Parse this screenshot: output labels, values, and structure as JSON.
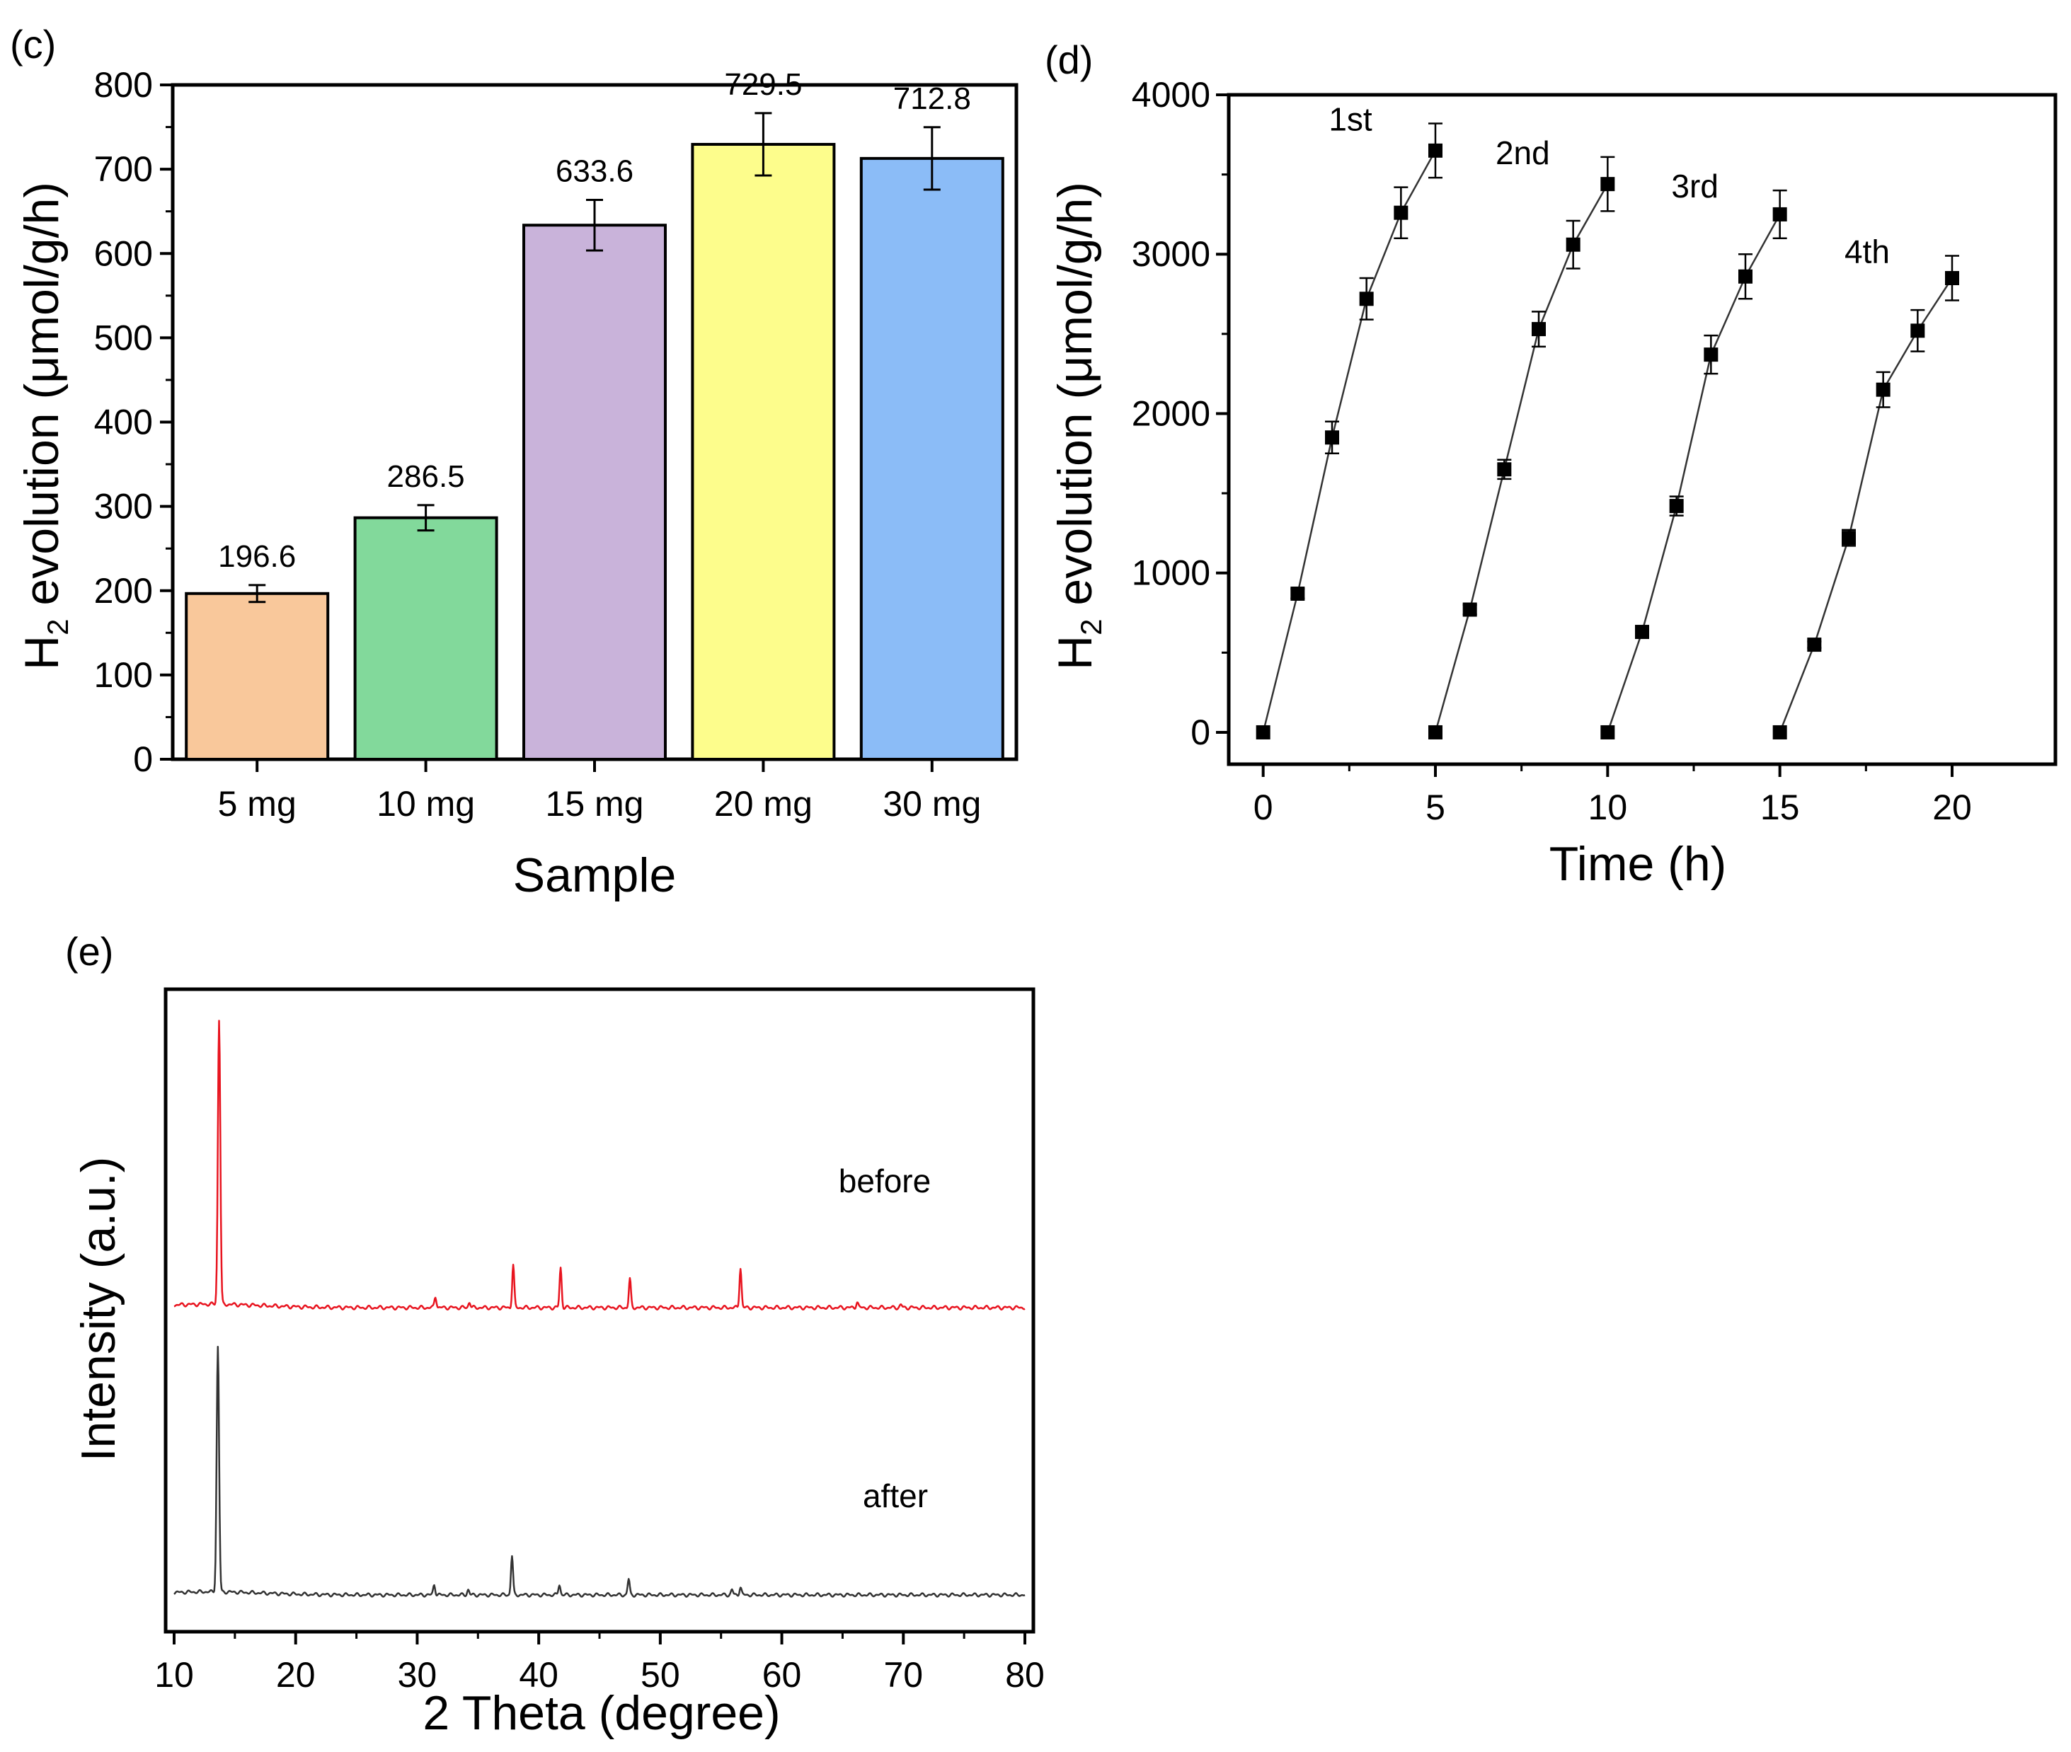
{
  "chart_data": [
    {
      "panel": "(c)",
      "type": "bar",
      "categories": [
        "5 mg",
        "10 mg",
        "15 mg",
        "20 mg",
        "30 mg"
      ],
      "values": [
        196.6,
        286.5,
        633.6,
        729.5,
        712.8
      ],
      "errors": [
        10,
        15,
        30,
        37,
        37
      ],
      "value_labels": [
        "196.6",
        "286.5",
        "633.6",
        "729.5",
        "712.8"
      ],
      "colors": [
        "#f9c89b",
        "#82d99b",
        "#c9b3da",
        "#fdfd8c",
        "#8bbcf7"
      ],
      "xlabel": "Sample",
      "ylabel_main": "H",
      "ylabel_sub": "2",
      "ylabel_rest": " evolution (μmol/g/h)",
      "ylim": [
        0,
        800
      ],
      "yticks": [
        0,
        100,
        200,
        300,
        400,
        500,
        600,
        700,
        800
      ]
    },
    {
      "panel": "(d)",
      "type": "line",
      "xlabel": "Time (h)",
      "ylabel_main": "H",
      "ylabel_sub": "2",
      "ylabel_rest": " evolution (μmol/g/h)",
      "xlim": [
        -1,
        23
      ],
      "ylim": [
        -200,
        4000
      ],
      "xticks": [
        0,
        5,
        10,
        15,
        20
      ],
      "yticks": [
        0,
        1000,
        2000,
        3000,
        4000
      ],
      "series": [
        {
          "name": "1st",
          "x": [
            0,
            1,
            2,
            3,
            4,
            5
          ],
          "y": [
            0,
            870,
            1850,
            2720,
            3260,
            3650
          ],
          "err": [
            0,
            30,
            100,
            130,
            160,
            170
          ]
        },
        {
          "name": "2nd",
          "x": [
            5,
            6,
            7,
            8,
            9,
            10
          ],
          "y": [
            0,
            770,
            1650,
            2530,
            3060,
            3440
          ],
          "err": [
            0,
            30,
            60,
            110,
            150,
            170
          ]
        },
        {
          "name": "3rd",
          "x": [
            10,
            11,
            12,
            13,
            14,
            15
          ],
          "y": [
            0,
            630,
            1420,
            2370,
            2860,
            3250
          ],
          "err": [
            0,
            20,
            60,
            120,
            140,
            150
          ]
        },
        {
          "name": "4th",
          "x": [
            15,
            16,
            17,
            18,
            19,
            20
          ],
          "y": [
            0,
            550,
            1220,
            2150,
            2520,
            2850
          ],
          "err": [
            0,
            20,
            50,
            110,
            130,
            140
          ]
        }
      ]
    },
    {
      "panel": "(e)",
      "type": "line",
      "xlabel": "2 Theta (degree)",
      "ylabel": "Intensity (a.u.)",
      "xlim": [
        10,
        80
      ],
      "xticks": [
        10,
        20,
        30,
        40,
        50,
        60,
        70,
        80
      ],
      "yticks": [],
      "series": [
        {
          "name": "before",
          "color": "#e8141f",
          "peaks": [
            [
              13.7,
              1.0
            ],
            [
              31.5,
              0.04
            ],
            [
              34.3,
              0.02
            ],
            [
              37.9,
              0.15
            ],
            [
              41.8,
              0.14
            ],
            [
              47.5,
              0.1
            ],
            [
              56.6,
              0.14
            ],
            [
              66.2,
              0.02
            ],
            [
              69.8,
              0.01
            ]
          ]
        },
        {
          "name": "after",
          "color": "#333333",
          "peaks": [
            [
              13.6,
              0.94
            ],
            [
              31.4,
              0.04
            ],
            [
              34.2,
              0.02
            ],
            [
              37.8,
              0.15
            ],
            [
              41.7,
              0.04
            ],
            [
              47.4,
              0.06
            ],
            [
              55.9,
              0.02
            ],
            [
              56.6,
              0.03
            ]
          ]
        }
      ]
    }
  ]
}
